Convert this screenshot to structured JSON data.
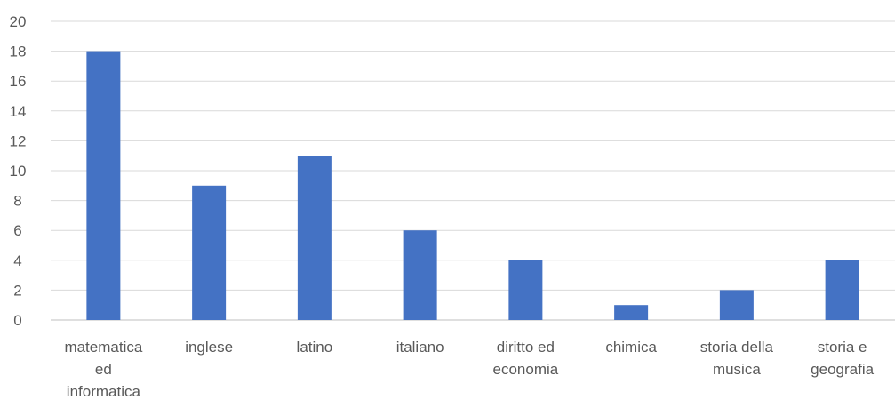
{
  "chart_data": {
    "type": "bar",
    "title": "",
    "xlabel": "",
    "ylabel": "",
    "categories": [
      [
        "matematica",
        "ed",
        "informatica"
      ],
      [
        "inglese"
      ],
      [
        "latino"
      ],
      [
        "italiano"
      ],
      [
        "diritto ed",
        "economia"
      ],
      [
        "chimica"
      ],
      [
        "storia della",
        "musica"
      ],
      [
        "storia e",
        "geografia"
      ]
    ],
    "values": [
      18,
      9,
      11,
      6,
      4,
      1,
      2,
      4
    ],
    "ylim": [
      0,
      20
    ],
    "yticks": [
      "0",
      "2",
      "4",
      "6",
      "8",
      "10",
      "12",
      "14",
      "16",
      "18",
      "20"
    ],
    "grid": true,
    "legend": "none",
    "bar_color": "#4472c4"
  }
}
